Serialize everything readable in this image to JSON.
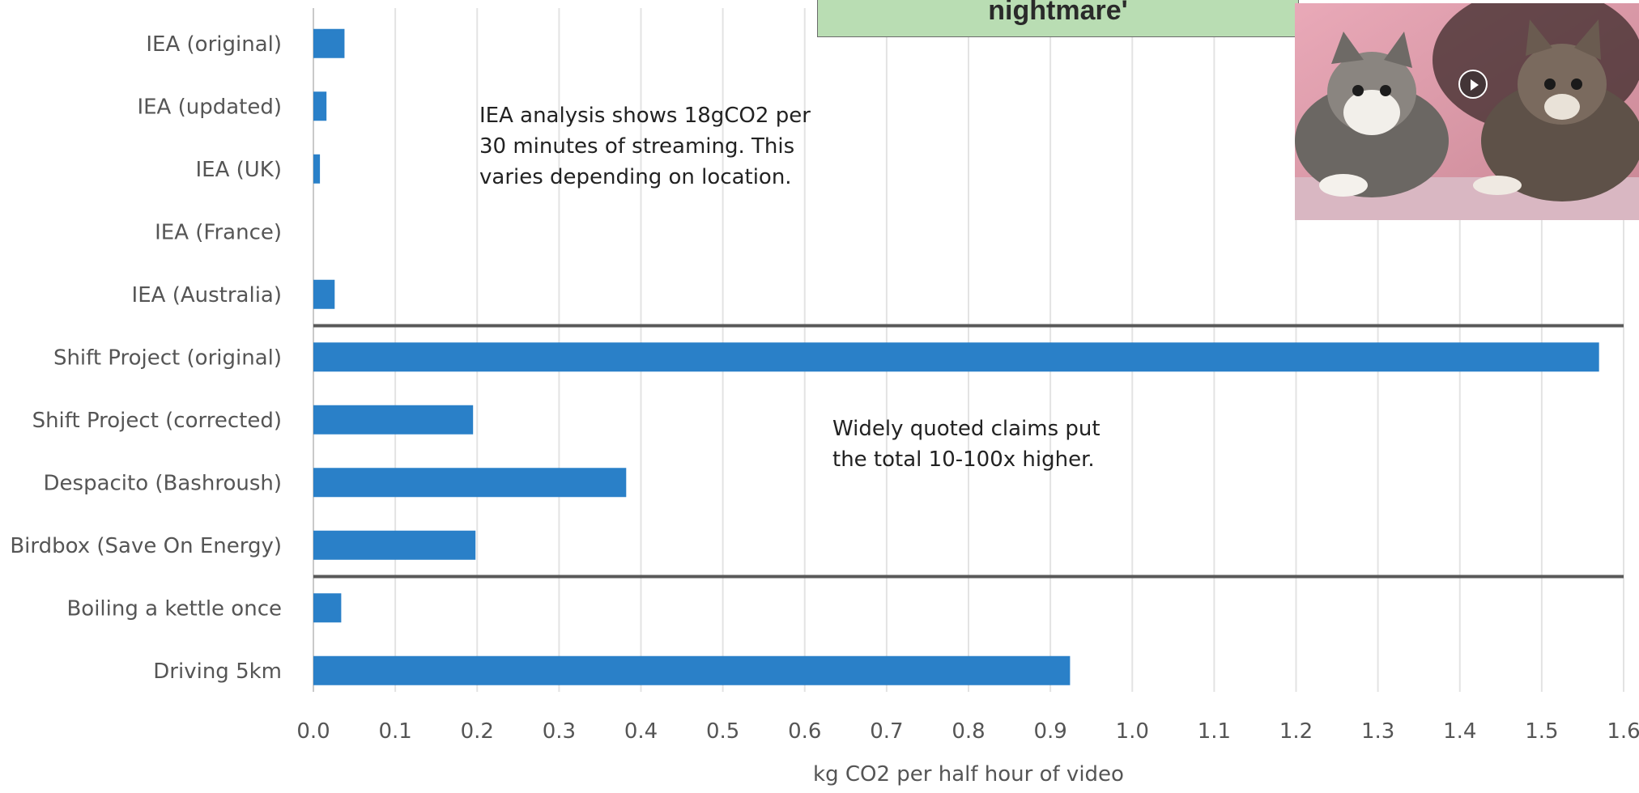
{
  "banner": {
    "text": "nightmare'"
  },
  "annotations": {
    "iea": [
      "IEA analysis shows 18gCO2 per",
      "30 minutes of streaming. This",
      "varies depending on location."
    ],
    "claims": [
      "Widely quoted claims put",
      "the total 10-100x higher."
    ]
  },
  "video": {
    "icon": "play-icon",
    "subject": "two kittens"
  },
  "colors": {
    "bar": "#2a80c8",
    "grid": "#e3e3e3",
    "separator": "#595959",
    "banner_bg": "#b9ddb3"
  },
  "chart_data": {
    "type": "bar",
    "orientation": "horizontal",
    "categories": [
      "IEA (original)",
      "IEA (updated)",
      "IEA (UK)",
      "IEA (France)",
      "IEA (Australia)",
      "Shift Project (original)",
      "Shift Project (corrected)",
      "Despacito (Bashroush)",
      "Birdbox (Save On Energy)",
      "Boiling a kettle once",
      "Driving 5km"
    ],
    "values": [
      0.038,
      0.016,
      0.008,
      0.0,
      0.026,
      1.57,
      0.195,
      0.382,
      0.198,
      0.034,
      0.924
    ],
    "xlabel": "kg CO2 per half hour of video",
    "ylabel": "",
    "xlim": [
      0,
      1.6
    ],
    "x_ticks": [
      "0.0",
      "0.1",
      "0.2",
      "0.3",
      "0.4",
      "0.5",
      "0.6",
      "0.7",
      "0.8",
      "0.9",
      "1.0",
      "1.1",
      "1.2",
      "1.3",
      "1.4",
      "1.5",
      "1.6"
    ],
    "grid": true,
    "legend": "none",
    "group_separators_after": [
      "IEA (Australia)",
      "Birdbox (Save On Energy)"
    ]
  }
}
